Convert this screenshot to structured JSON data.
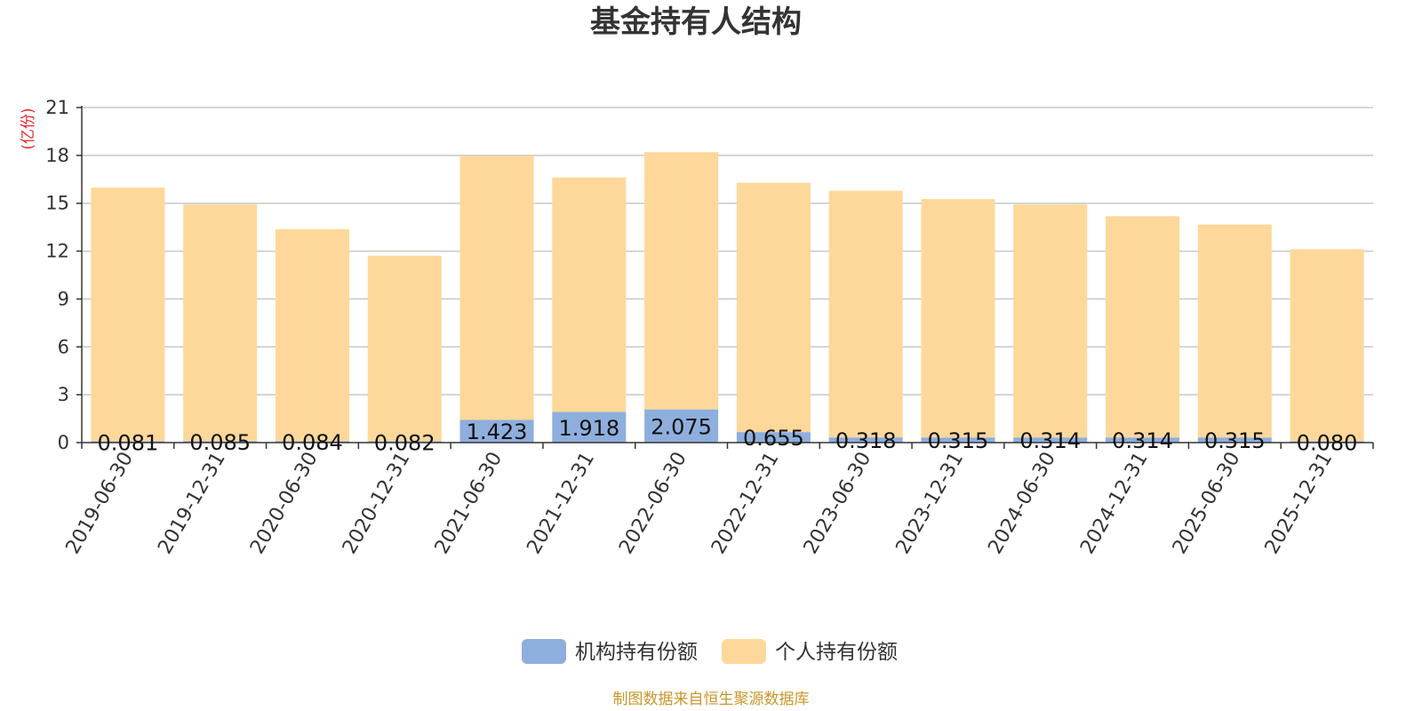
{
  "chart_data": {
    "type": "bar",
    "stacked": true,
    "title": "基金持有人结构",
    "ylabel": "(亿份)",
    "ylim": [
      0,
      21
    ],
    "yticks": [
      0,
      3,
      6,
      9,
      12,
      15,
      18,
      21
    ],
    "grid": true,
    "legend_position": "bottom",
    "categories": [
      "2019-06-30",
      "2019-12-31",
      "2020-06-30",
      "2020-12-31",
      "2021-06-30",
      "2021-12-31",
      "2022-06-30",
      "2022-12-31",
      "2023-06-30",
      "2023-12-31",
      "2024-06-30",
      "2024-12-31",
      "2025-06-30",
      "2025-12-31"
    ],
    "series": [
      {
        "name": "机构持有份额",
        "color": "#8eaedd",
        "values": [
          0.081,
          0.085,
          0.084,
          0.082,
          1.423,
          1.918,
          2.075,
          0.655,
          0.318,
          0.315,
          0.314,
          0.314,
          0.315,
          0.08
        ],
        "labels": [
          "0.081",
          "0.085",
          "0.084",
          "0.082",
          "1.423",
          "1.918",
          "2.075",
          "0.655",
          "0.318",
          "0.315",
          "0.314",
          "0.314",
          "0.315",
          "0.080"
        ]
      },
      {
        "name": "个人持有份额",
        "color": "#fdd89a",
        "values": [
          15.9,
          14.84,
          13.29,
          11.63,
          16.56,
          14.7,
          16.13,
          15.63,
          15.47,
          14.95,
          14.61,
          13.87,
          13.35,
          12.04
        ]
      }
    ],
    "source": "制图数据来自恒生聚源数据库"
  }
}
